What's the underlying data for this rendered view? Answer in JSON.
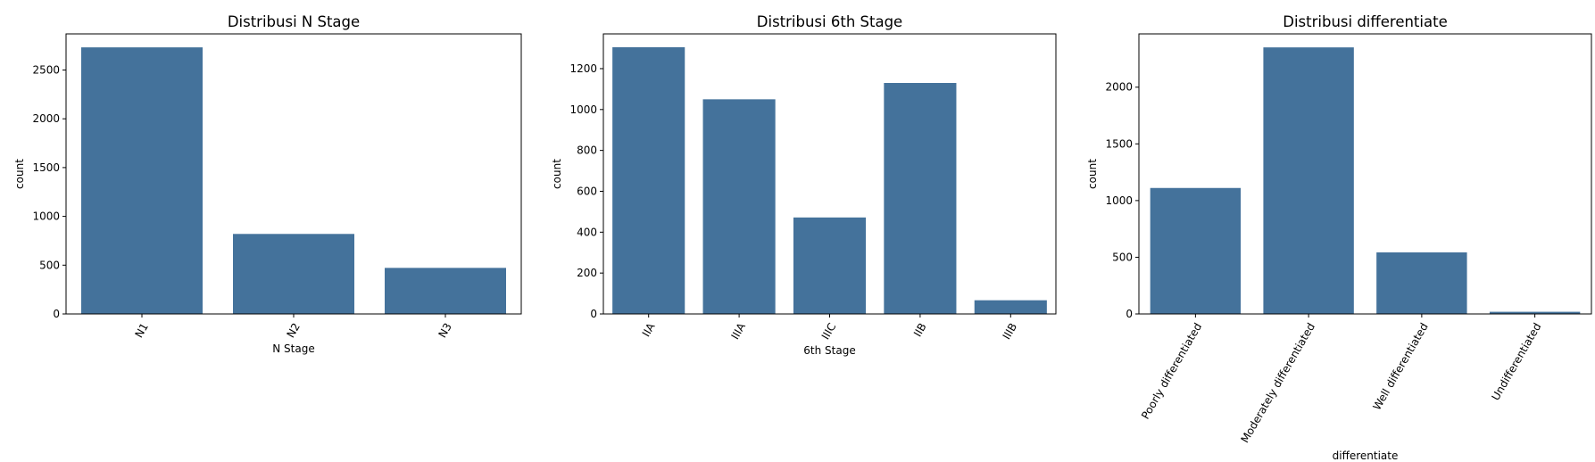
{
  "colors": {
    "bar": "#44729b",
    "axis": "#000000"
  },
  "chart_data": [
    {
      "type": "bar",
      "title": "Distribusi N Stage",
      "xlabel": "N Stage",
      "ylabel": "count",
      "categories": [
        "N1",
        "N2",
        "N3"
      ],
      "values": [
        2732,
        820,
        472
      ],
      "ylim": [
        0,
        2870
      ],
      "yticks": [
        0,
        500,
        1000,
        1500,
        2000,
        2500
      ],
      "xtick_rotation": 60,
      "grid": false
    },
    {
      "type": "bar",
      "title": "Distribusi 6th Stage",
      "xlabel": "6th Stage",
      "ylabel": "count",
      "categories": [
        "IIA",
        "IIIA",
        "IIIC",
        "IIB",
        "IIIB"
      ],
      "values": [
        1305,
        1050,
        472,
        1130,
        67
      ],
      "ylim": [
        0,
        1370
      ],
      "yticks": [
        0,
        200,
        400,
        600,
        800,
        1000,
        1200
      ],
      "xtick_rotation": 60,
      "grid": false
    },
    {
      "type": "bar",
      "title": "Distribusi differentiate",
      "xlabel": "differentiate",
      "ylabel": "count",
      "categories": [
        "Poorly differentiated",
        "Moderately differentiated",
        "Well differentiated",
        "Undifferentiated"
      ],
      "values": [
        1111,
        2351,
        543,
        19
      ],
      "ylim": [
        0,
        2470
      ],
      "yticks": [
        0,
        500,
        1000,
        1500,
        2000
      ],
      "xtick_rotation": 60,
      "grid": false
    }
  ]
}
